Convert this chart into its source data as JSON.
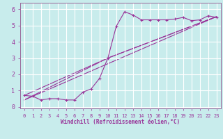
{
  "xlabel": "Windchill (Refroidissement éolien,°C)",
  "background_color": "#c8ecec",
  "grid_color": "#ffffff",
  "line_color": "#993399",
  "spine_color": "#996699",
  "xlim": [
    -0.5,
    23.5
  ],
  "ylim": [
    -0.1,
    6.4
  ],
  "xticks": [
    0,
    1,
    2,
    3,
    4,
    5,
    6,
    7,
    8,
    9,
    10,
    11,
    12,
    13,
    14,
    15,
    16,
    17,
    18,
    19,
    20,
    21,
    22,
    23
  ],
  "yticks": [
    0,
    1,
    2,
    3,
    4,
    5,
    6
  ],
  "series1_x": [
    0,
    1,
    2,
    3,
    4,
    5,
    6,
    7,
    8,
    9,
    10,
    11,
    12,
    13,
    14,
    15,
    16,
    17,
    18,
    19,
    20,
    21,
    22,
    23
  ],
  "series1_y": [
    0.7,
    0.65,
    0.42,
    0.5,
    0.5,
    0.42,
    0.42,
    0.9,
    1.1,
    1.75,
    3.0,
    4.95,
    5.85,
    5.65,
    5.35,
    5.35,
    5.35,
    5.35,
    5.4,
    5.5,
    5.3,
    5.35,
    5.6,
    5.5
  ],
  "series2_x": [
    0,
    10,
    23
  ],
  "series2_y": [
    0.7,
    3.0,
    5.55
  ],
  "series3_x": [
    0,
    10,
    23
  ],
  "series3_y": [
    0.42,
    3.0,
    5.55
  ],
  "series4_x": [
    0,
    23
  ],
  "series4_y": [
    0.42,
    5.55
  ]
}
